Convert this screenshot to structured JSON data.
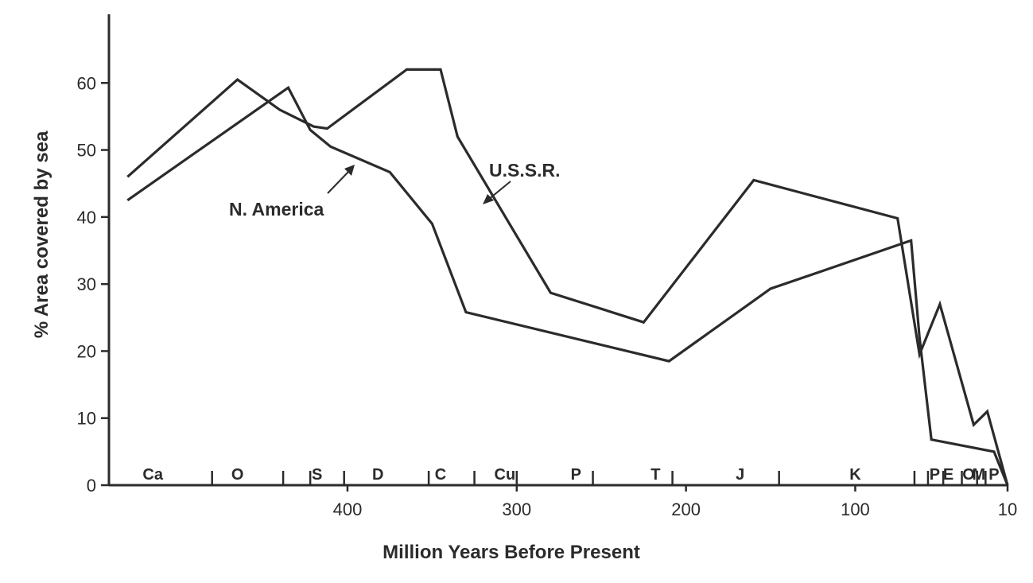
{
  "chart_data": {
    "type": "line",
    "title": "",
    "xlabel": "Million Years Before Present",
    "ylabel": "% Area covered by sea",
    "x_reversed": true,
    "xlim": [
      540,
      10
    ],
    "ylim": [
      0,
      70
    ],
    "x_ticks": [
      400,
      300,
      200,
      100,
      10
    ],
    "y_ticks": [
      0,
      10,
      20,
      30,
      40,
      50,
      60
    ],
    "grid": false,
    "periods": [
      {
        "label": "Ca",
        "mid": 515
      },
      {
        "label": "O",
        "mid": 465
      },
      {
        "label": "S",
        "mid": 418
      },
      {
        "label": "D",
        "mid": 382
      },
      {
        "label": "C",
        "mid": 345
      },
      {
        "label": "Cu",
        "mid": 307
      },
      {
        "label": "P",
        "mid": 265
      },
      {
        "label": "T",
        "mid": 218
      },
      {
        "label": "J",
        "mid": 168
      },
      {
        "label": "K",
        "mid": 100
      },
      {
        "label": "P",
        "mid": 53
      },
      {
        "label": "E",
        "mid": 45
      },
      {
        "label": "O",
        "mid": 33
      },
      {
        "label": "M",
        "mid": 27
      },
      {
        "label": "P",
        "mid": 18
      }
    ],
    "period_boundaries": [
      480,
      438,
      422,
      402,
      352,
      325,
      300,
      255,
      208,
      145,
      65,
      57,
      48,
      37,
      28,
      23
    ],
    "series": [
      {
        "name": "U.S.S.R.",
        "x": [
          530,
          465,
          440,
          420,
          412,
          365,
          345,
          335,
          280,
          225,
          160,
          75,
          62,
          50,
          30,
          22,
          10
        ],
        "y": [
          46,
          60.5,
          56,
          53.5,
          53.2,
          62,
          62,
          52,
          28.7,
          24.3,
          45.5,
          39.8,
          19.5,
          27,
          9,
          11,
          0
        ]
      },
      {
        "name": "N. America",
        "x": [
          530,
          435,
          422,
          410,
          375,
          350,
          330,
          210,
          150,
          67,
          62,
          55,
          18,
          10
        ],
        "y": [
          42.5,
          59.3,
          53,
          50.5,
          46.7,
          39,
          25.8,
          18.5,
          29.3,
          36.5,
          22,
          6.8,
          5,
          0
        ]
      }
    ],
    "annotations": [
      {
        "text": "U.S.S.R."
      },
      {
        "text": "N. America"
      }
    ]
  }
}
